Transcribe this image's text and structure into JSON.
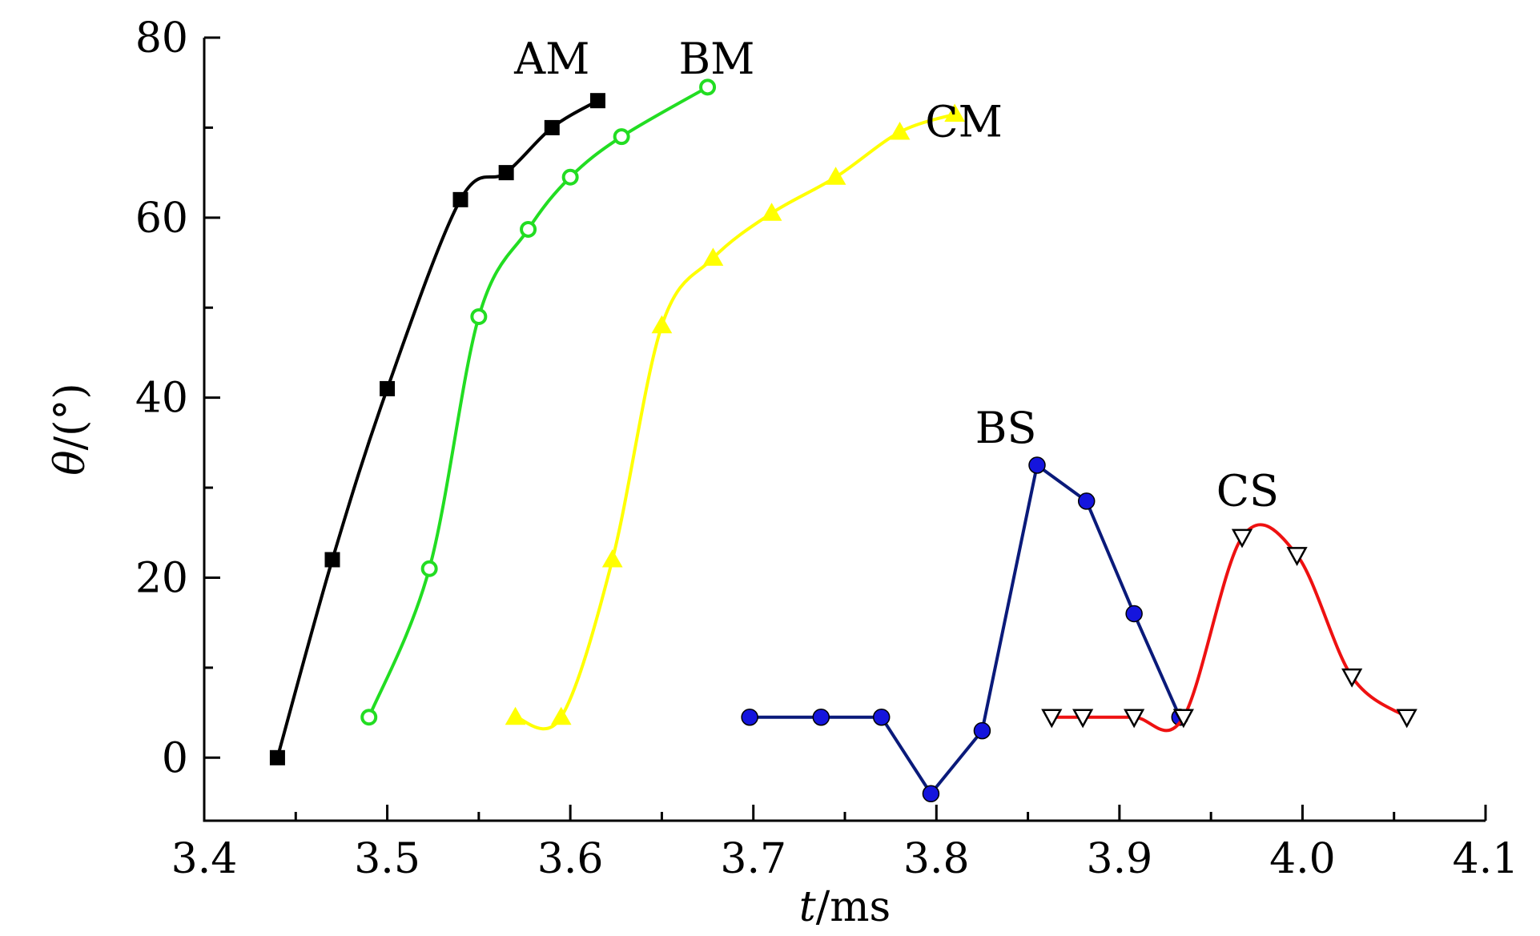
{
  "chart_data": {
    "type": "line",
    "title": "",
    "xlabel": "t/ms",
    "xlabel_italic_part": "t",
    "xlabel_rest": "/ms",
    "ylabel": "θ/(°)",
    "ylabel_italic_part": "θ",
    "ylabel_rest": "/(°)",
    "xlim": [
      3.4,
      4.1
    ],
    "ylim": [
      -7,
      80
    ],
    "x_ticks": [
      3.4,
      3.5,
      3.6,
      3.7,
      3.8,
      3.9,
      4.0,
      4.1
    ],
    "x_tick_labels": [
      "3.4",
      "3.5",
      "3.6",
      "3.7",
      "3.8",
      "3.9",
      "4.0",
      "4.1"
    ],
    "y_ticks": [
      0,
      20,
      40,
      60,
      80
    ],
    "y_tick_labels": [
      "0",
      "20",
      "40",
      "60",
      "80"
    ],
    "grid": false,
    "legend": "none",
    "series": [
      {
        "name": "AM",
        "color": "#000000",
        "marker": "filled-square",
        "marker_fill": "#000000",
        "x": [
          3.44,
          3.47,
          3.5,
          3.54,
          3.565,
          3.59,
          3.615
        ],
        "y": [
          0,
          22,
          41,
          62,
          65,
          70,
          73
        ]
      },
      {
        "name": "BM",
        "color": "#22dd22",
        "marker": "open-circle",
        "marker_fill": "#ffffff",
        "x": [
          3.49,
          3.523,
          3.55,
          3.577,
          3.6,
          3.628,
          3.675
        ],
        "y": [
          4.5,
          21,
          49,
          58.7,
          64.5,
          69,
          74.5
        ]
      },
      {
        "name": "CM",
        "color": "#ffff00",
        "marker": "filled-triangle-up",
        "marker_fill": "#ffff00",
        "x": [
          3.57,
          3.595,
          3.623,
          3.65,
          3.678,
          3.71,
          3.745,
          3.78,
          3.81
        ],
        "y": [
          4.5,
          4.5,
          22,
          48,
          55.5,
          60.5,
          64.5,
          69.5,
          71.5
        ]
      },
      {
        "name": "BS",
        "color": "#0a1a7a",
        "marker": "filled-circle",
        "marker_fill": "#1515dd",
        "x": [
          3.698,
          3.737,
          3.77,
          3.797,
          3.825,
          3.855,
          3.882,
          3.908,
          3.933
        ],
        "y": [
          4.5,
          4.5,
          4.5,
          -4,
          3,
          32.5,
          28.5,
          16,
          4.5
        ]
      },
      {
        "name": "CS",
        "color": "#ee1111",
        "marker": "open-triangle-down",
        "marker_fill": "#ffffff",
        "x": [
          3.863,
          3.88,
          3.908,
          3.935,
          3.967,
          3.997,
          4.027,
          4.057
        ],
        "y": [
          4.5,
          4.5,
          4.5,
          4.5,
          24.5,
          22.5,
          9,
          4.5
        ]
      }
    ],
    "annotations": [
      {
        "text": "AM",
        "x": 3.59,
        "y": 76
      },
      {
        "text": "BM",
        "x": 3.68,
        "y": 76
      },
      {
        "text": "CM",
        "x": 3.815,
        "y": 69
      },
      {
        "text": "BS",
        "x": 3.838,
        "y": 35
      },
      {
        "text": "CS",
        "x": 3.97,
        "y": 28
      }
    ]
  }
}
